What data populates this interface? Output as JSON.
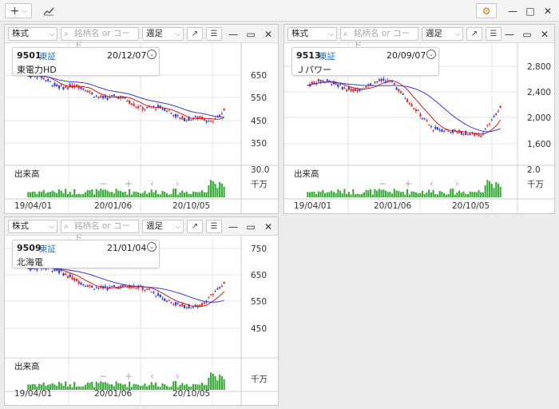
{
  "topbar": {
    "add_label": "+",
    "add_caret": "⌵",
    "settings_icon": "⚙",
    "min": "—",
    "max": "□",
    "close": "✕"
  },
  "common": {
    "market_type": "株式",
    "search_placeholder": "銘柄名 or コード",
    "period": "週足",
    "volume_label": "出来高",
    "nav": {
      "minus": "−",
      "plus": "+",
      "prev": "‹",
      "next": "›"
    }
  },
  "panels": [
    {
      "code": "9501",
      "exchange": "東証",
      "date": "20/12/07",
      "name": "東電力HD",
      "price_ticks": [
        "650",
        "550",
        "450",
        "350"
      ],
      "vol_ticks": [
        "30.0",
        "千万"
      ],
      "date_ticks": [
        "19/04/01",
        "20/01/06",
        "20/10/05"
      ]
    },
    {
      "code": "9513",
      "exchange": "東証",
      "date": "20/09/07",
      "name": "Ｊパワー",
      "price_ticks": [
        "2,800",
        "2,400",
        "2,000",
        "1,600"
      ],
      "vol_ticks": [
        "2.0",
        "千万"
      ],
      "date_ticks": [
        "19/04/01",
        "20/01/06",
        "20/10/05"
      ]
    },
    {
      "code": "9509",
      "exchange": "東証",
      "date": "21/01/04",
      "name": "北海電",
      "price_ticks": [
        "750",
        "650",
        "550",
        "450"
      ],
      "vol_ticks": [
        "千万"
      ],
      "date_ticks": [
        "19/04/01",
        "20/01/06",
        "20/10/05"
      ]
    }
  ],
  "colors": {
    "up": "#e03030",
    "down": "#2a3fd0",
    "ma_short": "#d02020",
    "ma_long": "#3a3ad8",
    "volume": "#3aaa3a",
    "grid": "#e6e6e6"
  }
}
